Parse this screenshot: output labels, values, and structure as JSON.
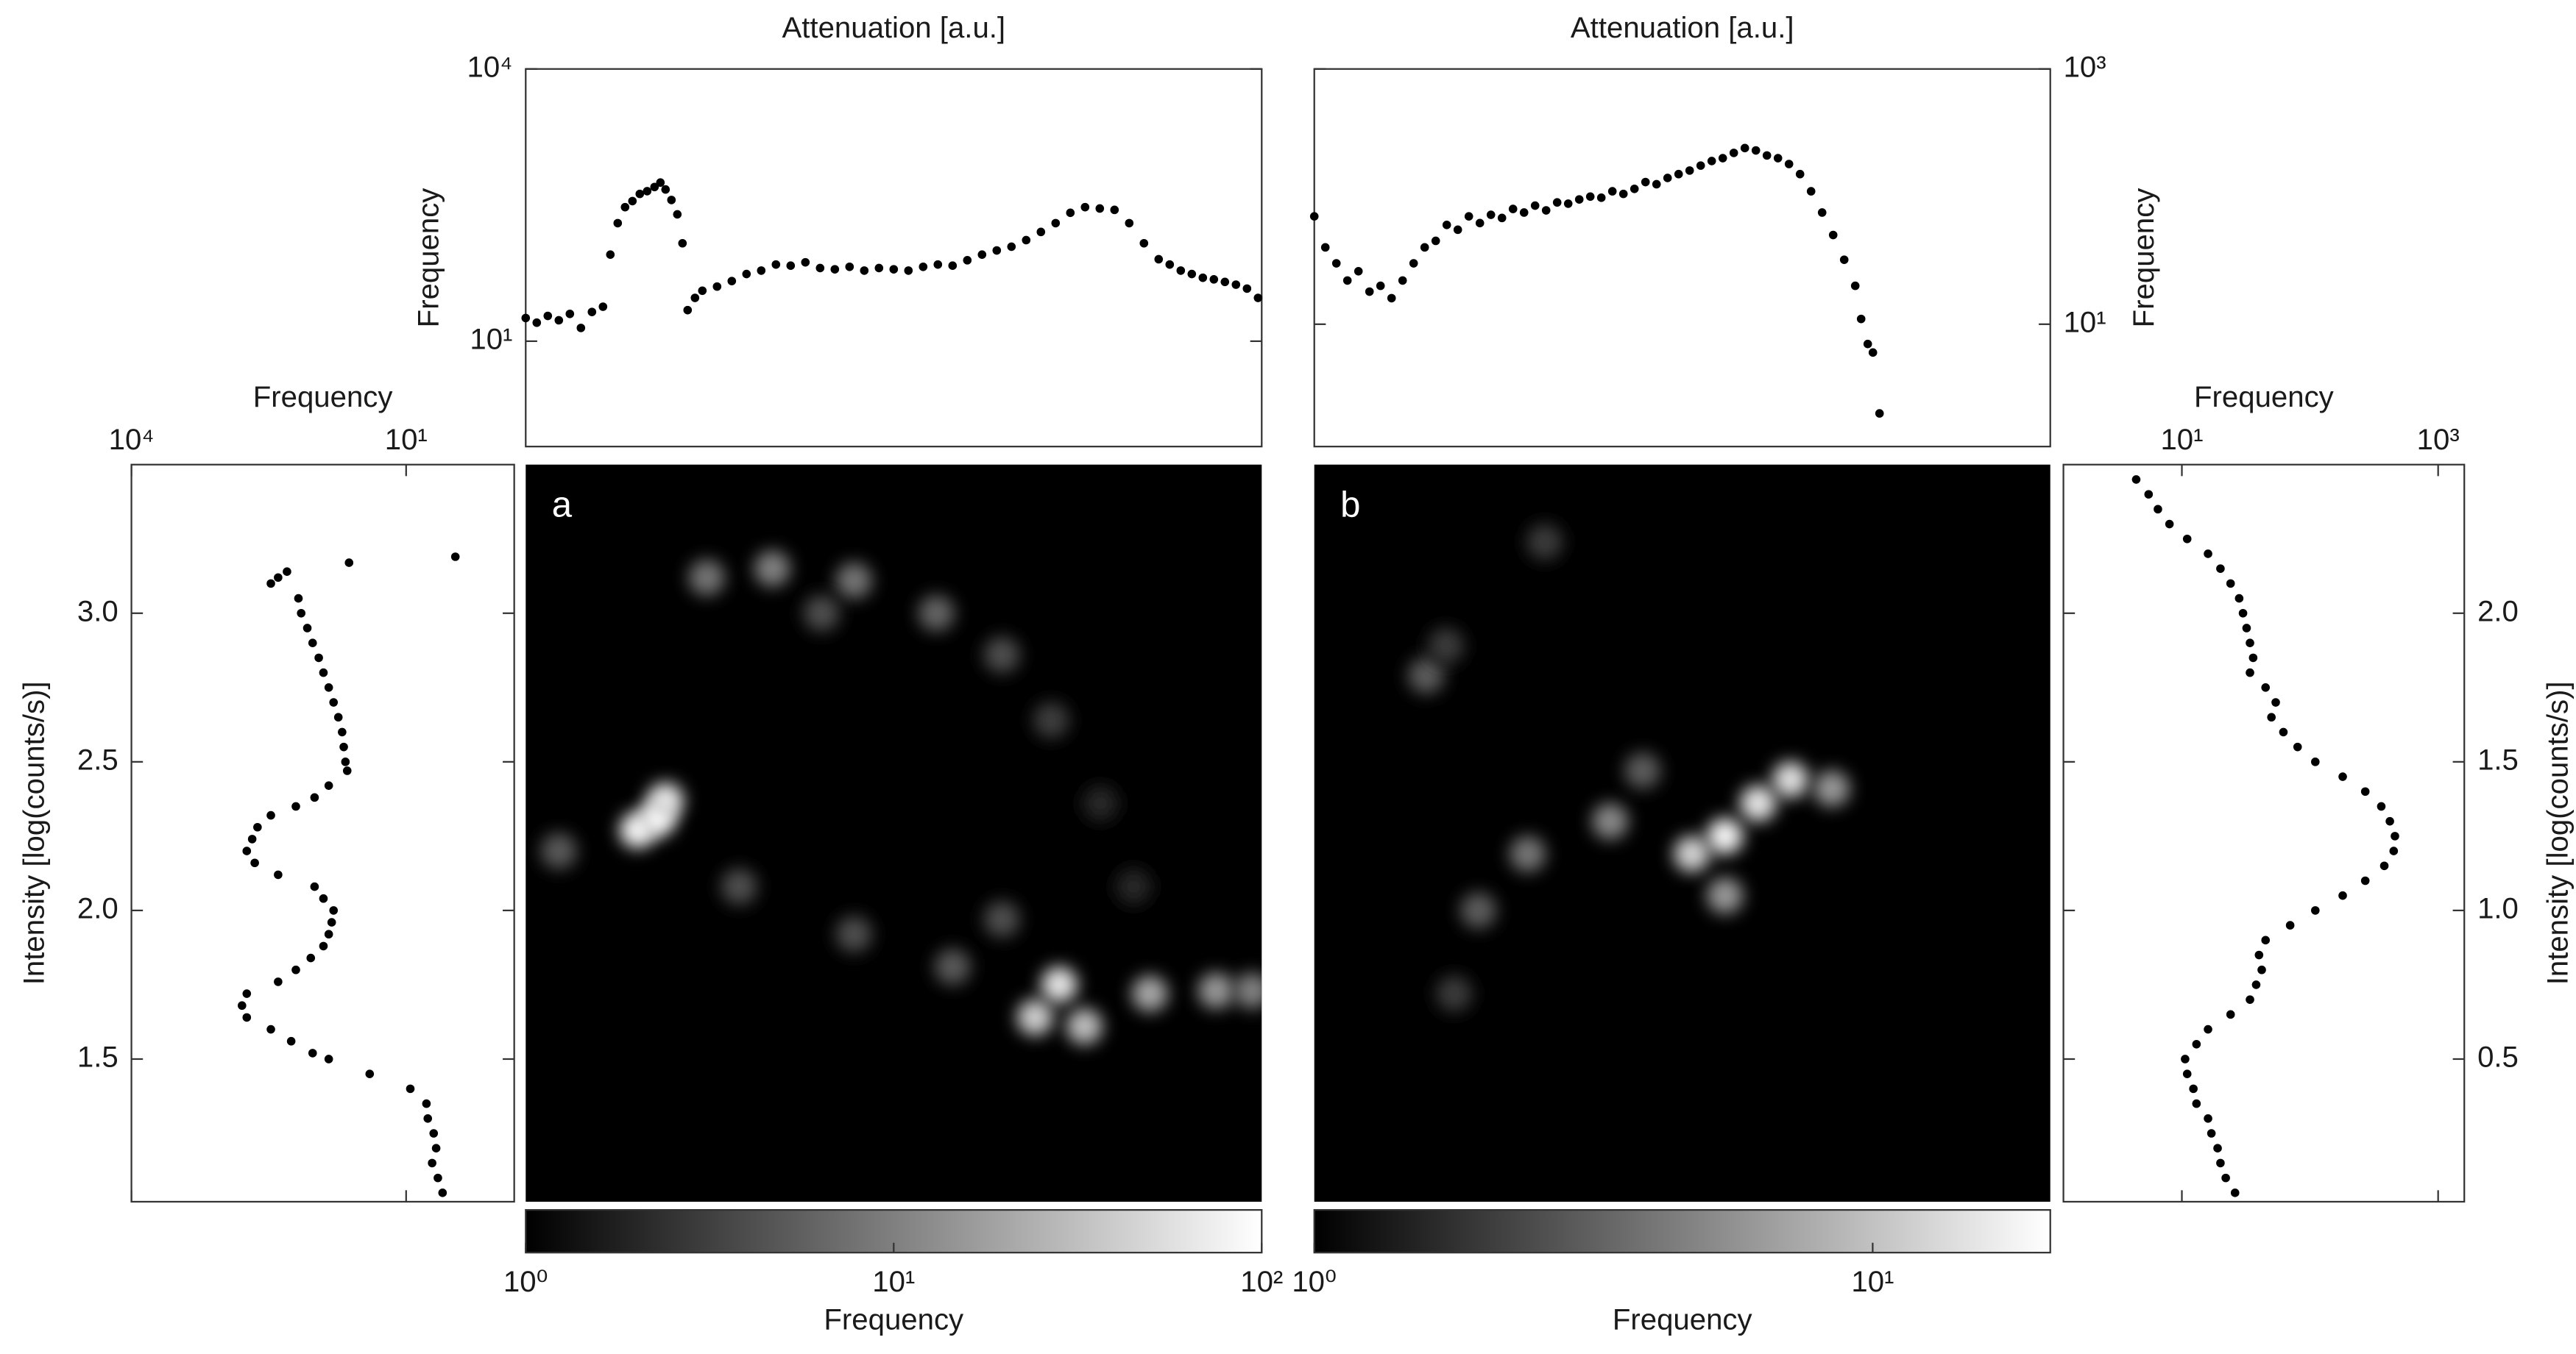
{
  "chart_data": [
    {
      "type": "scatter",
      "xlabel": "Attenuation [a.u.]",
      "ylabel": "Frequency",
      "color": "#000000",
      "xlim": [
        0,
        100
      ],
      "ylim": [
        0.69,
        10000
      ],
      "ylog": true,
      "yticks": [
        {
          "value": 10,
          "label": "10¹"
        },
        {
          "value": 10000,
          "label": "10⁴"
        }
      ],
      "x": [
        0,
        1.5,
        3,
        4.5,
        6,
        7.5,
        9,
        10.5,
        11.5,
        12.5,
        13.5,
        14.5,
        15.5,
        16.5,
        17.5,
        18.3,
        19,
        19.8,
        20.6,
        21.3,
        22,
        23,
        24,
        26,
        28,
        30,
        32,
        34,
        36,
        38,
        40,
        42,
        44,
        46,
        48,
        50,
        52,
        54,
        56,
        58,
        60,
        62,
        64,
        66,
        68,
        70,
        72,
        74,
        76,
        78,
        80,
        82,
        84,
        86,
        87.5,
        89,
        90.5,
        92,
        93.5,
        95,
        96.5,
        98,
        99.5
      ],
      "values": [
        18,
        16,
        19,
        17,
        20,
        14,
        21,
        24,
        90,
        200,
        300,
        350,
        420,
        450,
        500,
        560,
        470,
        360,
        250,
        120,
        22,
        30,
        36,
        40,
        46,
        55,
        60,
        70,
        68,
        74,
        64,
        62,
        66,
        60,
        64,
        62,
        60,
        66,
        70,
        68,
        78,
        90,
        100,
        110,
        130,
        160,
        200,
        260,
        300,
        290,
        280,
        200,
        120,
        80,
        70,
        60,
        55,
        50,
        48,
        45,
        42,
        38,
        30
      ]
    },
    {
      "type": "scatter",
      "xlabel": "Attenuation [a.u.]",
      "ylabel": "Frequency",
      "color": "#000000",
      "xlim": [
        0,
        100
      ],
      "ylim": [
        1.1,
        1000
      ],
      "ylog": true,
      "yticks": [
        {
          "value": 10,
          "label": "10¹"
        },
        {
          "value": 1000,
          "label": "10³"
        }
      ],
      "x": [
        0,
        1.5,
        3,
        4.5,
        6,
        7.5,
        9,
        10.5,
        12,
        13.5,
        15,
        16.5,
        18,
        19.5,
        21,
        22.5,
        24,
        25.5,
        27,
        28.5,
        30,
        31.5,
        33,
        34.5,
        36,
        37.5,
        39,
        40.5,
        42,
        43.5,
        45,
        46.5,
        48,
        49.5,
        51,
        52.5,
        54,
        55.5,
        57,
        58.5,
        60,
        61.5,
        63,
        64.5,
        66,
        67.5,
        69,
        70.5,
        72,
        73.5,
        74.3,
        75.2,
        75.9,
        76.8
      ],
      "values": [
        70,
        40,
        30,
        22,
        26,
        18,
        20,
        16,
        22,
        30,
        40,
        45,
        60,
        55,
        70,
        62,
        72,
        68,
        80,
        75,
        85,
        78,
        90,
        88,
        95,
        100,
        98,
        110,
        105,
        115,
        130,
        125,
        140,
        150,
        160,
        175,
        190,
        200,
        220,
        240,
        230,
        210,
        200,
        180,
        150,
        110,
        75,
        50,
        32,
        20,
        11,
        7,
        6,
        2
      ]
    },
    {
      "type": "scatter",
      "xlabel": "Frequency",
      "ylabel": "Intensity [log(counts/s)]",
      "color": "#000000",
      "xlim": [
        10000,
        0.66
      ],
      "xlog": true,
      "ylim": [
        1.02,
        3.5
      ],
      "xticks": [
        {
          "value": 10000,
          "label": "10⁴"
        },
        {
          "value": 10,
          "label": "10¹"
        }
      ],
      "yticks": [
        1.5,
        {
          "value": 2,
          "label": "2.0"
        },
        2.5,
        {
          "value": 3,
          "label": "3.0"
        }
      ],
      "y": [
        3.19,
        3.17,
        3.14,
        3.12,
        3.1,
        3.05,
        3.0,
        2.95,
        2.9,
        2.85,
        2.8,
        2.75,
        2.7,
        2.65,
        2.6,
        2.55,
        2.5,
        2.47,
        2.42,
        2.38,
        2.35,
        2.32,
        2.28,
        2.24,
        2.2,
        2.16,
        2.12,
        2.08,
        2.04,
        2.0,
        1.96,
        1.92,
        1.88,
        1.84,
        1.8,
        1.76,
        1.72,
        1.68,
        1.64,
        1.6,
        1.56,
        1.52,
        1.5,
        1.45,
        1.4,
        1.35,
        1.3,
        1.25,
        1.2,
        1.15,
        1.1,
        1.05
      ],
      "values": [
        2.9,
        42,
        200,
        250,
        300,
        150,
        140,
        120,
        105,
        90,
        80,
        70,
        62,
        55,
        50,
        48,
        46,
        44,
        70,
        100,
        160,
        300,
        420,
        480,
        550,
        450,
        250,
        100,
        80,
        62,
        65,
        70,
        80,
        110,
        160,
        250,
        550,
        620,
        550,
        300,
        180,
        105,
        70,
        25,
        9,
        6,
        5.8,
        5,
        4.7,
        5.2,
        4.5,
        4
      ]
    },
    {
      "type": "scatter",
      "xlabel": "Frequency",
      "ylabel": "Intensity [log(counts/s)]",
      "color": "#000000",
      "xlim": [
        1.19,
        1600
      ],
      "xlog": true,
      "ylim": [
        0.02,
        2.5
      ],
      "xticks": [
        {
          "value": 10,
          "label": "10¹"
        },
        {
          "value": 1000,
          "label": "10³"
        }
      ],
      "yticks": [
        0.5,
        {
          "value": 1,
          "label": "1.0"
        },
        1.5,
        {
          "value": 2,
          "label": "2.0"
        }
      ],
      "y": [
        2.45,
        2.4,
        2.35,
        2.3,
        2.25,
        2.2,
        2.15,
        2.1,
        2.05,
        2.0,
        1.95,
        1.9,
        1.85,
        1.8,
        1.75,
        1.7,
        1.65,
        1.6,
        1.55,
        1.5,
        1.45,
        1.4,
        1.35,
        1.3,
        1.25,
        1.2,
        1.15,
        1.1,
        1.05,
        1.0,
        0.95,
        0.9,
        0.85,
        0.8,
        0.75,
        0.7,
        0.65,
        0.6,
        0.55,
        0.5,
        0.45,
        0.4,
        0.35,
        0.3,
        0.25,
        0.2,
        0.15,
        0.1,
        0.05
      ],
      "values": [
        4.4,
        5.5,
        6.5,
        8,
        11,
        16,
        20,
        24,
        28,
        30,
        32,
        34,
        36,
        34,
        45,
        54,
        50,
        62,
        80,
        110,
        180,
        270,
        360,
        420,
        460,
        450,
        380,
        270,
        180,
        110,
        70,
        45,
        40,
        42,
        38,
        34,
        24,
        16,
        13,
        10.6,
        11,
        12.3,
        13,
        16,
        17,
        19,
        20,
        22,
        26
      ]
    },
    {
      "type": "heatmap",
      "label": "a",
      "xlim": [
        0,
        100
      ],
      "ylim": [
        1.02,
        3.5
      ],
      "colormap": [
        "#000000",
        "#ffffff"
      ],
      "x": [
        24.6,
        33.5,
        44.6,
        55.8,
        64.7,
        71.4,
        78.1,
        82.6,
        40.2,
        17.9,
        15.2,
        19.0,
        4.5,
        29,
        44.6,
        58,
        69.2,
        72.5,
        75.9,
        84.8,
        93.8,
        98.7,
        64.7
      ],
      "y": [
        3.12,
        3.15,
        3.11,
        3.0,
        2.86,
        2.64,
        2.36,
        2.08,
        3.0,
        2.31,
        2.27,
        2.37,
        2.2,
        2.08,
        1.92,
        1.81,
        1.64,
        1.75,
        1.61,
        1.72,
        1.73,
        1.73,
        1.97
      ],
      "values": [
        8,
        10,
        8,
        6,
        4,
        3,
        2,
        2,
        4,
        100,
        80,
        60,
        5,
        4,
        4,
        5,
        40,
        60,
        30,
        20,
        15,
        10,
        4
      ],
      "colorbar": {
        "label": "Frequency",
        "lim": [
          1,
          100
        ],
        "log": true,
        "ticks": [
          {
            "value": 1,
            "label": "10⁰"
          },
          {
            "value": 10,
            "label": "10¹"
          },
          {
            "value": 100,
            "label": "10²"
          }
        ]
      }
    },
    {
      "type": "heatmap",
      "label": "b",
      "xlim": [
        0,
        100
      ],
      "ylim": [
        0.02,
        2.5
      ],
      "colormap": [
        "#000000",
        "#ffffff"
      ],
      "x": [
        15.2,
        17.9,
        22.3,
        19.0,
        29,
        40.2,
        51.3,
        55.8,
        60.3,
        64.7,
        70.3,
        44.6,
        31.3,
        55.8
      ],
      "y": [
        1.79,
        1.89,
        1.0,
        0.72,
        1.19,
        1.3,
        1.19,
        1.25,
        1.36,
        1.44,
        1.41,
        1.47,
        2.24,
        1.05
      ],
      "values": [
        3,
        2,
        3,
        2,
        4,
        5,
        12,
        18,
        15,
        14,
        6,
        3,
        2,
        6
      ],
      "colorbar": {
        "label": "Frequency",
        "lim": [
          1,
          20.8
        ],
        "log": true,
        "ticks": [
          {
            "value": 1,
            "label": "10⁰"
          },
          {
            "value": 10,
            "label": "10¹"
          }
        ]
      }
    }
  ]
}
